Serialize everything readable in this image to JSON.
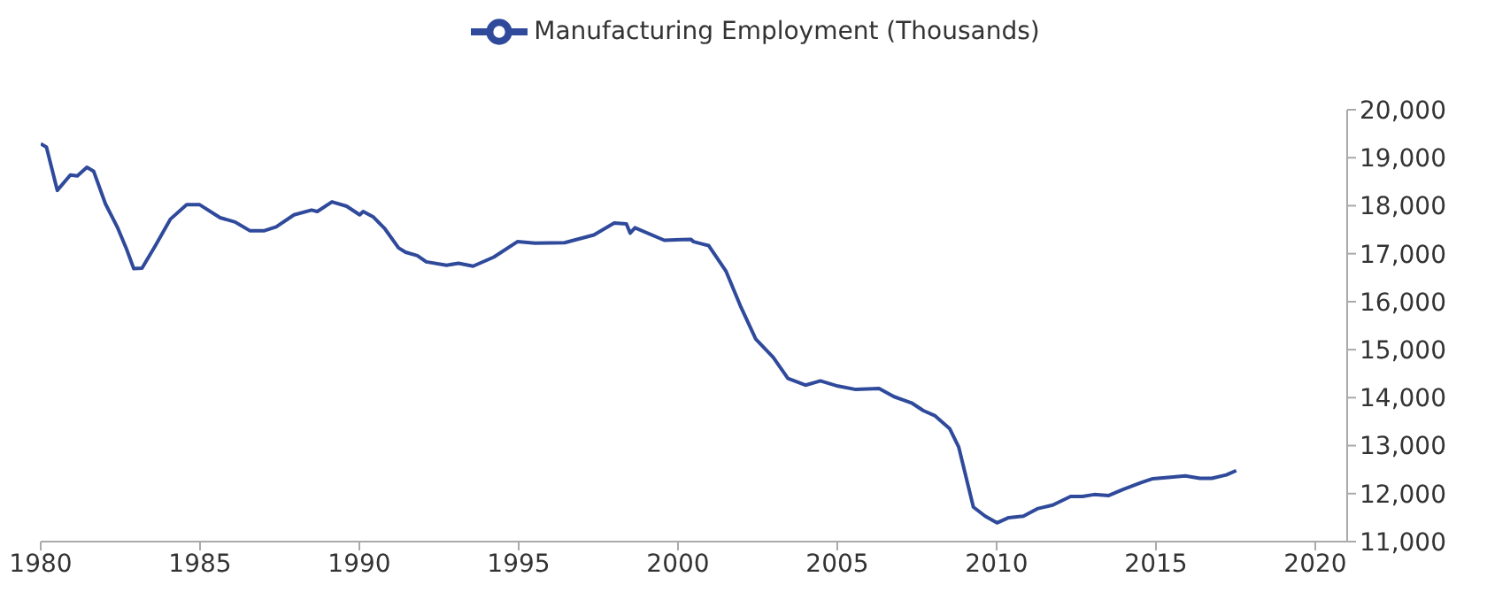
{
  "chart_data": {
    "type": "line",
    "x": [
      1980.0,
      1980.18,
      1980.52,
      1980.93,
      1981.15,
      1981.45,
      1981.66,
      1982.03,
      1982.4,
      1982.68,
      1982.92,
      1983.18,
      1983.6,
      1984.07,
      1984.58,
      1984.99,
      1985.63,
      1986.1,
      1986.56,
      1987.02,
      1987.39,
      1987.95,
      1988.5,
      1988.68,
      1989.14,
      1989.6,
      1990.01,
      1990.12,
      1990.43,
      1990.8,
      1991.23,
      1991.45,
      1991.82,
      1992.1,
      1992.74,
      1993.11,
      1993.57,
      1994.22,
      1994.96,
      1995.51,
      1996.44,
      1997.36,
      1998.0,
      1998.38,
      1998.5,
      1998.65,
      1999.57,
      2000.4,
      2000.49,
      2000.78,
      2000.96,
      2001.51,
      2001.98,
      2002.44,
      2002.99,
      2003.45,
      2004.0,
      2004.47,
      2005.02,
      2005.58,
      2006.31,
      2006.78,
      2007.33,
      2007.7,
      2008.07,
      2008.53,
      2008.81,
      2008.99,
      2009.27,
      2009.64,
      2010.01,
      2010.38,
      2010.84,
      2011.3,
      2011.76,
      2012.32,
      2012.69,
      2013.06,
      2013.52,
      2013.98,
      2014.53,
      2014.9,
      2015.46,
      2015.92,
      2016.38,
      2016.75,
      2017.21,
      2017.52
    ],
    "series": [
      {
        "name": "Manufacturing Employment (Thousands)",
        "color": "#2f4a9b",
        "values": [
          19290,
          19220,
          18320,
          18640,
          18620,
          18800,
          18720,
          18040,
          17560,
          17120,
          16690,
          16700,
          17170,
          17720,
          18020,
          18020,
          17750,
          17660,
          17480,
          17480,
          17560,
          17810,
          17910,
          17880,
          18080,
          17990,
          17810,
          17880,
          17770,
          17520,
          17120,
          17030,
          16960,
          16830,
          16760,
          16800,
          16740,
          16930,
          17250,
          17220,
          17230,
          17390,
          17640,
          17620,
          17430,
          17540,
          17280,
          17300,
          17250,
          17200,
          17170,
          16630,
          15880,
          15220,
          14840,
          14400,
          14260,
          14350,
          14240,
          14170,
          14190,
          14020,
          13890,
          13730,
          13620,
          13350,
          12970,
          12480,
          11720,
          11530,
          11390,
          11500,
          11530,
          11690,
          11760,
          11940,
          11940,
          11980,
          11960,
          12090,
          12230,
          12310,
          12340,
          12370,
          12320,
          12320,
          12390,
          12480
        ]
      }
    ],
    "xlim": [
      1980,
      2021
    ],
    "xticks": [
      1980,
      1985,
      1990,
      1995,
      2000,
      2005,
      2010,
      2015,
      2020
    ],
    "ylim": [
      11000,
      20000
    ],
    "yticks": [
      {
        "value": 11000,
        "label": "11,000"
      },
      {
        "value": 12000,
        "label": "12,000"
      },
      {
        "value": 13000,
        "label": "13,000"
      },
      {
        "value": 14000,
        "label": "14,000"
      },
      {
        "value": 15000,
        "label": "15,000"
      },
      {
        "value": 16000,
        "label": "16,000"
      },
      {
        "value": 17000,
        "label": "17,000"
      },
      {
        "value": 18000,
        "label": "18,000"
      },
      {
        "value": 19000,
        "label": "19,000"
      },
      {
        "value": 20000,
        "label": "20,000"
      }
    ],
    "legend": "top",
    "grid": false,
    "marker": "none",
    "line_style": "solid"
  }
}
